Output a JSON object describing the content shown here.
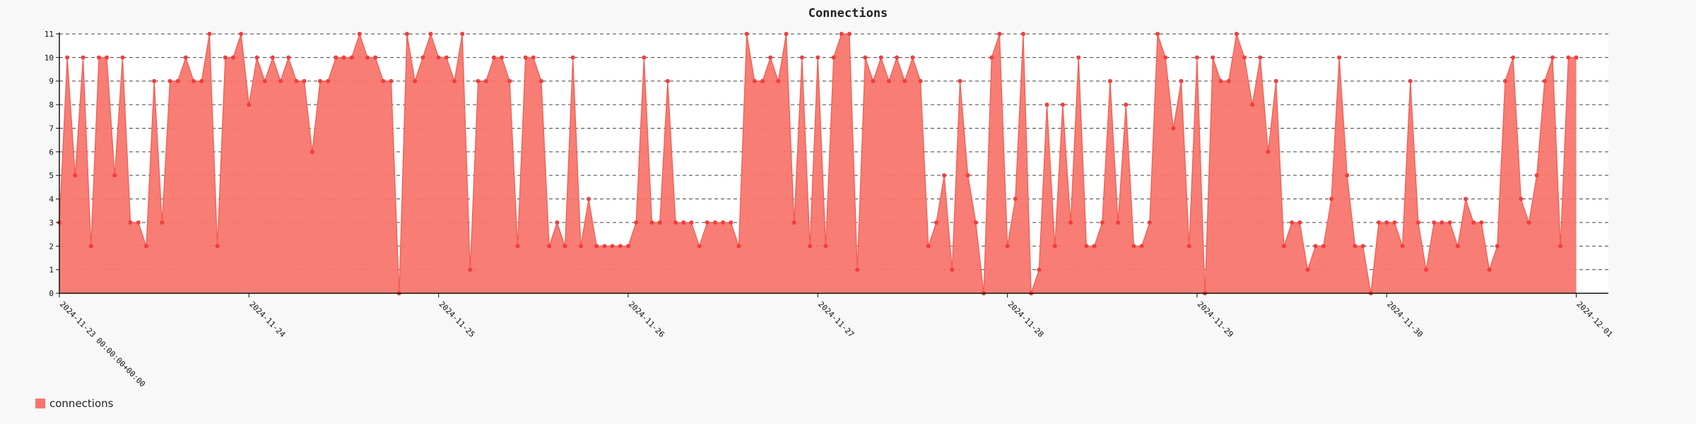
{
  "chart_data": {
    "type": "area",
    "title": "Connections",
    "xlabel": "",
    "ylabel": "",
    "ylim": [
      0,
      11
    ],
    "yticks": [
      0,
      1,
      2,
      3,
      4,
      5,
      6,
      7,
      8,
      9,
      10,
      11
    ],
    "grid": "horizontal dashed",
    "legend_position": "bottom-left",
    "x_start": "2024-11-23 00:00",
    "x_step_hours": 1,
    "major_ticks": [
      {
        "label": "2024-11-23 00:00:00+00:00",
        "hour": 0
      },
      {
        "label": "2024-11-24",
        "hour": 24
      },
      {
        "label": "2024-11-25",
        "hour": 48
      },
      {
        "label": "2024-11-26",
        "hour": 72
      },
      {
        "label": "2024-11-27",
        "hour": 96
      },
      {
        "label": "2024-11-28",
        "hour": 120
      },
      {
        "label": "2024-11-29",
        "hour": 144
      },
      {
        "label": "2024-11-30",
        "hour": 168
      },
      {
        "label": "2024-12-01",
        "hour": 192
      }
    ],
    "series": [
      {
        "name": "connections",
        "color": "#f8766d",
        "values": [
          3,
          10,
          5,
          10,
          2,
          10,
          10,
          5,
          10,
          3,
          3,
          2,
          9,
          3,
          9,
          9,
          10,
          9,
          9,
          11,
          2,
          10,
          10,
          11,
          8,
          10,
          9,
          10,
          9,
          10,
          9,
          9,
          6,
          9,
          9,
          10,
          10,
          10,
          11,
          10,
          10,
          9,
          9,
          0,
          11,
          9,
          10,
          11,
          10,
          10,
          9,
          11,
          1,
          9,
          9,
          10,
          10,
          9,
          2,
          10,
          10,
          9,
          2,
          3,
          2,
          10,
          2,
          4,
          2,
          2,
          2,
          2,
          2,
          3,
          10,
          3,
          3,
          9,
          3,
          3,
          3,
          2,
          3,
          3,
          3,
          3,
          2,
          11,
          9,
          9,
          10,
          9,
          11,
          3,
          10,
          2,
          10,
          2,
          10,
          11,
          11,
          1,
          10,
          9,
          10,
          9,
          10,
          9,
          10,
          9,
          2,
          3,
          5,
          1,
          9,
          5,
          3,
          0,
          10,
          11,
          2,
          4,
          11,
          0,
          1,
          8,
          2,
          8,
          3,
          10,
          2,
          2,
          3,
          9,
          3,
          8,
          2,
          2,
          3,
          11,
          10,
          7,
          9,
          2,
          10,
          0,
          10,
          9,
          9,
          11,
          10,
          8,
          10,
          6,
          9,
          2,
          3,
          3,
          1,
          2,
          2,
          4,
          10,
          5,
          2,
          2,
          0,
          3,
          3,
          3,
          2,
          9,
          3,
          1,
          3,
          3,
          3,
          2,
          4,
          3,
          3,
          1,
          2,
          9,
          10,
          4,
          3,
          5,
          9,
          10,
          2,
          10,
          10
        ]
      }
    ]
  }
}
